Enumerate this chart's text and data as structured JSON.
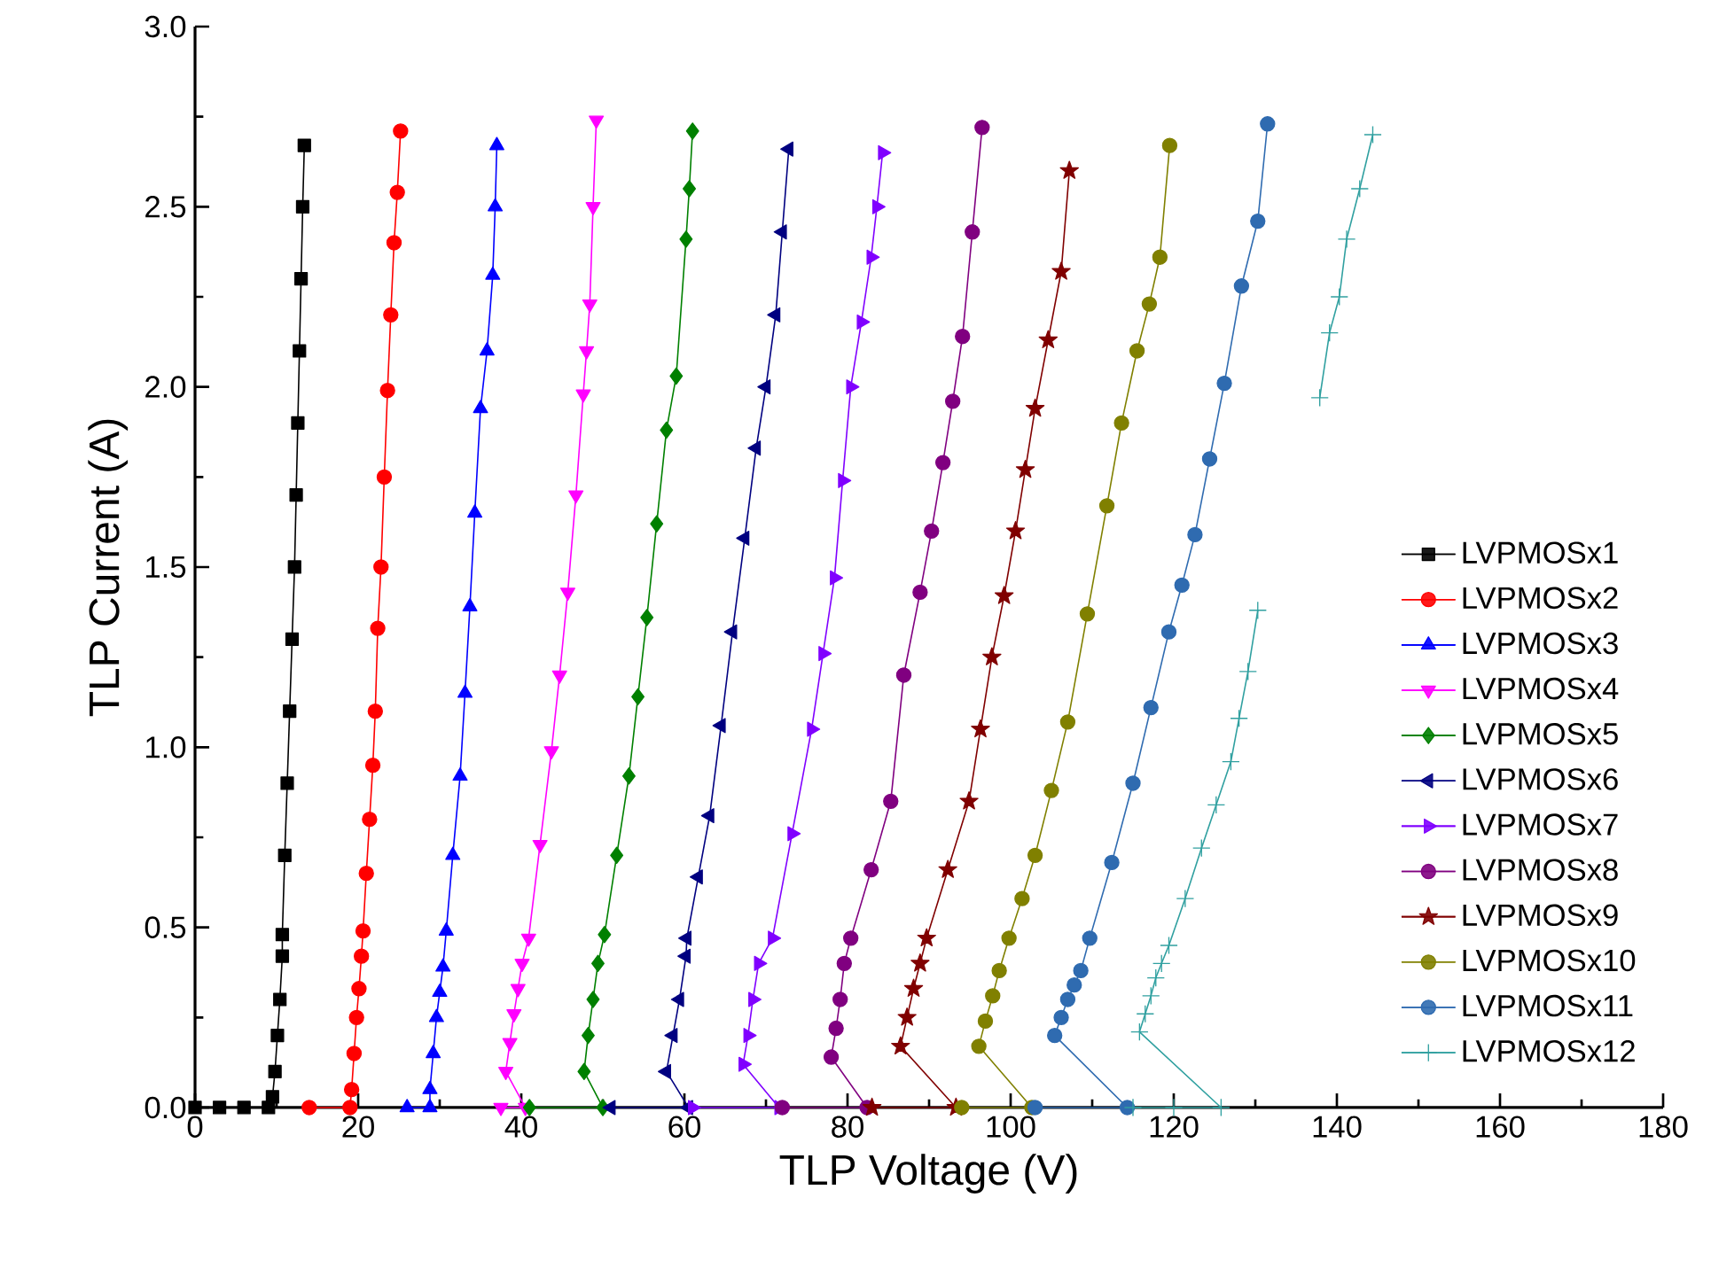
{
  "chart_data": {
    "type": "line",
    "xlabel": "TLP Voltage (V)",
    "ylabel": "TLP Current (A)",
    "xlim": [
      0,
      180
    ],
    "ylim": [
      0,
      3.0
    ],
    "xticks": [
      0,
      20,
      40,
      60,
      80,
      100,
      120,
      140,
      160,
      180
    ],
    "yticks": [
      {
        "value": 0,
        "label": "0.0"
      },
      {
        "value": 0.5,
        "label": "0.5"
      },
      {
        "value": 1.0,
        "label": "1.0"
      },
      {
        "value": 1.5,
        "label": "1.5"
      },
      {
        "value": 2.0,
        "label": "2.0"
      },
      {
        "value": 2.5,
        "label": "2.5"
      },
      {
        "value": 3.0,
        "label": "3.0"
      }
    ],
    "legend": "bottom right",
    "series": [
      {
        "name": "LVPMOSx1",
        "color": "#000000",
        "marker": "square",
        "x": [
          0,
          3,
          6,
          9,
          9.5,
          9.8,
          10.1,
          10.4,
          10.7,
          10.7,
          11.0,
          11.3,
          11.6,
          11.9,
          12.2,
          12.4,
          12.6,
          12.8,
          13.0,
          13.2,
          13.4
        ],
        "values": [
          0,
          0,
          0,
          0,
          0.03,
          0.1,
          0.2,
          0.3,
          0.42,
          0.48,
          0.7,
          0.9,
          1.1,
          1.3,
          1.5,
          1.7,
          1.9,
          2.1,
          2.3,
          2.5,
          2.67
        ]
      },
      {
        "name": "LVPMOSx2",
        "color": "#ff0000",
        "marker": "circle",
        "x": [
          14,
          19,
          19.2,
          19.5,
          19.8,
          20.1,
          20.4,
          20.6,
          21.0,
          21.4,
          21.8,
          22.1,
          22.4,
          22.8,
          23.2,
          23.6,
          24.0,
          24.4,
          24.8,
          25.2
        ],
        "values": [
          0,
          0,
          0.05,
          0.15,
          0.25,
          0.33,
          0.42,
          0.49,
          0.65,
          0.8,
          0.95,
          1.1,
          1.33,
          1.5,
          1.75,
          1.99,
          2.2,
          2.4,
          2.54,
          2.71
        ]
      },
      {
        "name": "LVPMOSx3",
        "color": "#0000ff",
        "marker": "triangle",
        "x": [
          26,
          28.8,
          28.8,
          29.2,
          29.6,
          30.0,
          30.4,
          30.8,
          31.6,
          32.5,
          33.1,
          33.7,
          34.3,
          35.0,
          35.8,
          36.5,
          36.8,
          37.0
        ],
        "values": [
          0,
          0,
          0.05,
          0.15,
          0.25,
          0.32,
          0.39,
          0.49,
          0.7,
          0.92,
          1.15,
          1.39,
          1.65,
          1.94,
          2.1,
          2.31,
          2.5,
          2.67
        ]
      },
      {
        "name": "LVPMOSx4",
        "color": "#ff00ff",
        "marker": "triangle-down",
        "x": [
          37.5,
          40.5,
          38.1,
          38.6,
          39.1,
          39.6,
          40.1,
          40.9,
          42.3,
          43.7,
          44.7,
          45.7,
          46.7,
          47.6,
          48.0,
          48.4,
          48.8,
          49.2
        ],
        "values": [
          0,
          0,
          0.1,
          0.18,
          0.26,
          0.33,
          0.4,
          0.47,
          0.73,
          0.99,
          1.2,
          1.43,
          1.7,
          1.98,
          2.1,
          2.23,
          2.5,
          2.74
        ]
      },
      {
        "name": "LVPMOSx5",
        "color": "#008000",
        "marker": "diamond",
        "x": [
          41,
          50,
          47.7,
          48.2,
          48.8,
          49.4,
          50.2,
          51.7,
          53.2,
          54.3,
          55.4,
          56.6,
          57.8,
          59.0,
          60.2,
          60.6,
          61.0
        ],
        "values": [
          0,
          0,
          0.1,
          0.2,
          0.3,
          0.4,
          0.48,
          0.7,
          0.92,
          1.14,
          1.36,
          1.62,
          1.88,
          2.03,
          2.41,
          2.55,
          2.71
        ]
      },
      {
        "name": "LVPMOSx6",
        "color": "#000080",
        "marker": "triangle-left",
        "x": [
          51,
          60.5,
          57.8,
          58.6,
          59.4,
          60.2,
          60.3,
          61.7,
          63.1,
          64.5,
          65.9,
          67.4,
          68.8,
          70.0,
          71.2,
          72.0,
          72.8
        ],
        "values": [
          0,
          0,
          0.1,
          0.2,
          0.3,
          0.42,
          0.47,
          0.64,
          0.81,
          1.06,
          1.32,
          1.58,
          1.83,
          2.0,
          2.2,
          2.43,
          2.66
        ]
      },
      {
        "name": "LVPMOSx7",
        "color": "#8000ff",
        "marker": "triangle-right",
        "x": [
          61,
          71.6,
          67.2,
          67.8,
          68.4,
          69.1,
          70.8,
          73.2,
          75.6,
          77.0,
          78.4,
          79.4,
          80.4,
          81.7,
          82.9,
          83.6,
          84.3
        ],
        "values": [
          0,
          0,
          0.12,
          0.2,
          0.3,
          0.4,
          0.47,
          0.76,
          1.05,
          1.26,
          1.47,
          1.74,
          2.0,
          2.18,
          2.36,
          2.5,
          2.65
        ]
      },
      {
        "name": "LVPMOSx8",
        "color": "#800080",
        "marker": "circle",
        "x": [
          72,
          82.4,
          78.0,
          78.6,
          79.1,
          79.6,
          80.4,
          82.9,
          85.3,
          86.9,
          88.9,
          90.3,
          91.7,
          92.9,
          94.1,
          95.3,
          96.5
        ],
        "values": [
          0,
          0,
          0.14,
          0.22,
          0.3,
          0.4,
          0.47,
          0.66,
          0.85,
          1.2,
          1.43,
          1.6,
          1.79,
          1.96,
          2.14,
          2.43,
          2.72
        ]
      },
      {
        "name": "LVPMOSx9",
        "color": "#800000",
        "marker": "star",
        "x": [
          83,
          93.3,
          86.5,
          87.3,
          88.1,
          88.9,
          89.7,
          92.3,
          94.9,
          96.3,
          97.7,
          99.2,
          100.6,
          101.8,
          103.0,
          104.6,
          106.2,
          107.2
        ],
        "values": [
          0,
          0,
          0.17,
          0.25,
          0.33,
          0.4,
          0.47,
          0.66,
          0.85,
          1.05,
          1.25,
          1.42,
          1.6,
          1.77,
          1.94,
          2.13,
          2.32,
          2.6
        ]
      },
      {
        "name": "LVPMOSx10",
        "color": "#808000",
        "marker": "circle",
        "x": [
          94,
          102.6,
          96.1,
          96.9,
          97.8,
          98.6,
          99.8,
          101.4,
          103.0,
          105.0,
          107.0,
          109.4,
          111.8,
          113.6,
          115.5,
          117.0,
          118.3,
          119.5
        ],
        "values": [
          0,
          0,
          0.17,
          0.24,
          0.31,
          0.38,
          0.47,
          0.58,
          0.7,
          0.88,
          1.07,
          1.37,
          1.67,
          1.9,
          2.1,
          2.23,
          2.36,
          2.67
        ]
      },
      {
        "name": "LVPMOSx11",
        "color": "#2f6bb0",
        "marker": "circle",
        "x": [
          103,
          114.3,
          105.4,
          106.2,
          107.0,
          107.8,
          108.6,
          109.7,
          112.4,
          115.0,
          117.2,
          119.4,
          121.0,
          122.6,
          124.4,
          126.2,
          128.3,
          130.3,
          131.5
        ],
        "values": [
          0,
          0,
          0.2,
          0.25,
          0.3,
          0.34,
          0.38,
          0.47,
          0.68,
          0.9,
          1.11,
          1.32,
          1.45,
          1.59,
          1.8,
          2.01,
          2.28,
          2.46,
          2.73
        ]
      },
      {
        "name": "LVPMOSx12",
        "color": "#30a0a0",
        "marker": "cross",
        "x": [
          115,
          120,
          125.8,
          115.8,
          116.5,
          117.2,
          117.8,
          118.5,
          119.4,
          121.4,
          123.4,
          125.2,
          127.0,
          128.0,
          129.1,
          130.3,
          134,
          137.9,
          139.1,
          140.3,
          141.2,
          142.8,
          144.4
        ],
        "values": [
          0,
          0,
          0,
          0.21,
          0.26,
          0.31,
          0.36,
          0.4,
          0.45,
          0.58,
          0.72,
          0.84,
          0.96,
          1.08,
          1.21,
          1.38,
          null,
          1.97,
          2.15,
          2.25,
          2.41,
          2.55,
          2.7
        ]
      }
    ]
  }
}
